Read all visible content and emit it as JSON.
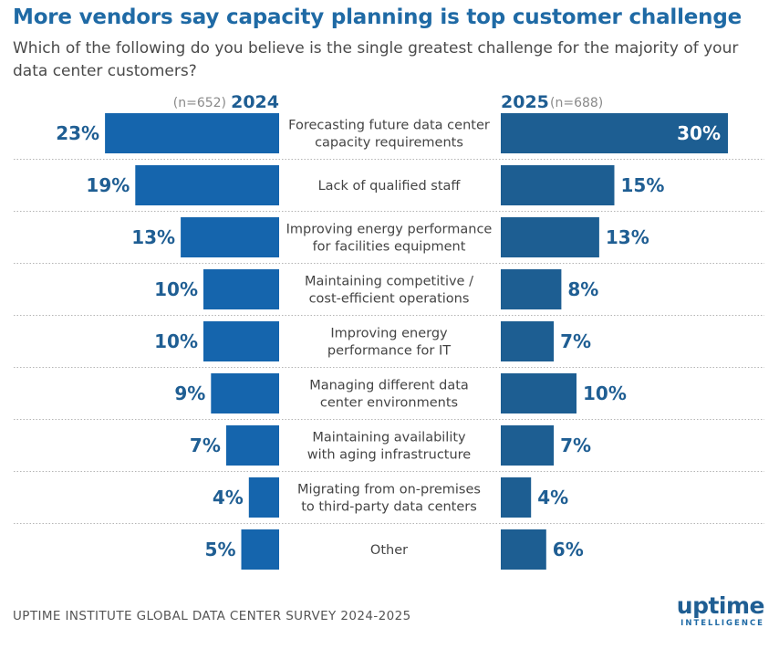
{
  "header": {
    "title": "More vendors say capacity planning is top customer challenge",
    "subtitle": "Which of the following do you believe is the single greatest challenge for the majority of your data center customers?"
  },
  "footer": {
    "source": "UPTIME INSTITUTE GLOBAL DATA CENTER SURVEY 2024-2025",
    "logo_word": "uptime",
    "logo_sub": "INTELLIGENCE"
  },
  "colors": {
    "bar_2024": "#1565ad",
    "bar_2025": "#1d5e92",
    "value_text": "#1f5e93",
    "divider": "#b5b5b5"
  },
  "chart_data": {
    "type": "bar",
    "orientation": "horizontal-butterfly",
    "unit": "%",
    "categories": [
      [
        "Forecasting future data center",
        "capacity requirements"
      ],
      [
        "Lack of qualified staff"
      ],
      [
        "Improving energy performance",
        "for facilities equipment"
      ],
      [
        "Maintaining competitive /",
        "cost-efficient operations"
      ],
      [
        "Improving energy",
        "performance for IT"
      ],
      [
        "Managing different data",
        "center environments"
      ],
      [
        "Maintaining availability",
        "with aging infrastructure"
      ],
      [
        "Migrating from on-premises",
        "to third-party data centers"
      ],
      [
        "Other"
      ]
    ],
    "series": [
      {
        "name": "2024",
        "n_label": "(n=652)",
        "values": [
          23,
          19,
          13,
          10,
          10,
          9,
          7,
          4,
          5
        ]
      },
      {
        "name": "2025",
        "n_label": "(n=688)",
        "values": [
          30,
          15,
          13,
          8,
          7,
          10,
          7,
          4,
          6
        ]
      }
    ]
  }
}
